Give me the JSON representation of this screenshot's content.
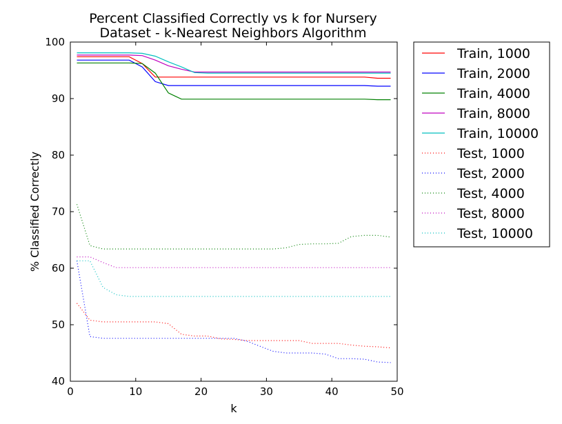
{
  "chart_data": {
    "type": "line",
    "title": "Percent Classified Correctly vs k for Nursery\nDataset - k-Nearest Neighbors Algorithm",
    "xlabel": "k",
    "ylabel": "% Classified Correctly",
    "xlim": [
      0,
      50
    ],
    "ylim": [
      40,
      100
    ],
    "xticks": [
      0,
      10,
      20,
      30,
      40,
      50
    ],
    "yticks": [
      40,
      50,
      60,
      70,
      80,
      90,
      100
    ],
    "grid": false,
    "legend_position": "outside-right",
    "x": [
      1,
      3,
      5,
      7,
      9,
      11,
      13,
      15,
      17,
      19,
      21,
      23,
      25,
      27,
      29,
      31,
      33,
      35,
      37,
      39,
      41,
      43,
      45,
      47,
      49
    ],
    "series": [
      {
        "name": "Train, 1000",
        "color": "#ff0000",
        "style": "solid",
        "values": [
          97.4,
          97.4,
          97.4,
          97.4,
          97.4,
          96.2,
          93.8,
          93.8,
          93.8,
          93.8,
          93.8,
          93.8,
          93.8,
          93.8,
          93.8,
          93.8,
          93.8,
          93.8,
          93.8,
          93.8,
          93.8,
          93.8,
          93.8,
          93.6,
          93.6
        ]
      },
      {
        "name": "Train, 2000",
        "color": "#0000ff",
        "style": "solid",
        "values": [
          96.8,
          96.8,
          96.8,
          96.8,
          96.8,
          95.6,
          93.0,
          92.3,
          92.3,
          92.3,
          92.3,
          92.3,
          92.3,
          92.3,
          92.3,
          92.3,
          92.3,
          92.3,
          92.3,
          92.3,
          92.3,
          92.3,
          92.3,
          92.2,
          92.2
        ]
      },
      {
        "name": "Train, 4000",
        "color": "#008000",
        "style": "solid",
        "values": [
          96.3,
          96.3,
          96.3,
          96.3,
          96.3,
          96.2,
          94.5,
          91.0,
          89.9,
          89.9,
          89.9,
          89.9,
          89.9,
          89.9,
          89.9,
          89.9,
          89.9,
          89.9,
          89.9,
          89.9,
          89.9,
          89.9,
          89.9,
          89.8,
          89.8
        ]
      },
      {
        "name": "Train, 8000",
        "color": "#bf00bf",
        "style": "solid",
        "values": [
          97.7,
          97.7,
          97.7,
          97.7,
          97.7,
          97.6,
          96.8,
          95.8,
          95.2,
          94.7,
          94.7,
          94.7,
          94.7,
          94.7,
          94.7,
          94.7,
          94.7,
          94.7,
          94.7,
          94.7,
          94.7,
          94.7,
          94.7,
          94.7,
          94.7
        ]
      },
      {
        "name": "Train, 10000",
        "color": "#00bfbf",
        "style": "solid",
        "values": [
          98.1,
          98.1,
          98.1,
          98.1,
          98.1,
          98.0,
          97.5,
          96.5,
          95.6,
          94.6,
          94.5,
          94.5,
          94.5,
          94.5,
          94.5,
          94.5,
          94.5,
          94.5,
          94.5,
          94.5,
          94.5,
          94.5,
          94.5,
          94.5,
          94.5
        ]
      },
      {
        "name": "Test, 1000",
        "color": "#ff0000",
        "style": "dotted",
        "values": [
          53.8,
          50.8,
          50.5,
          50.5,
          50.5,
          50.5,
          50.5,
          50.2,
          48.3,
          48.0,
          48.0,
          47.5,
          47.4,
          47.2,
          47.2,
          47.2,
          47.2,
          47.2,
          46.7,
          46.7,
          46.7,
          46.4,
          46.2,
          46.1,
          45.9
        ]
      },
      {
        "name": "Test, 2000",
        "color": "#0000ff",
        "style": "dotted",
        "values": [
          61.3,
          47.9,
          47.6,
          47.6,
          47.6,
          47.6,
          47.6,
          47.6,
          47.6,
          47.6,
          47.6,
          47.6,
          47.6,
          47.1,
          46.2,
          45.3,
          45.0,
          45.0,
          45.0,
          44.8,
          44.0,
          44.0,
          43.9,
          43.4,
          43.3
        ]
      },
      {
        "name": "Test, 4000",
        "color": "#008000",
        "style": "dotted",
        "values": [
          71.3,
          64.0,
          63.4,
          63.4,
          63.4,
          63.4,
          63.4,
          63.4,
          63.4,
          63.4,
          63.4,
          63.4,
          63.4,
          63.4,
          63.4,
          63.4,
          63.6,
          64.2,
          64.3,
          64.3,
          64.4,
          65.6,
          65.8,
          65.8,
          65.5
        ]
      },
      {
        "name": "Test, 8000",
        "color": "#bf00bf",
        "style": "dotted",
        "values": [
          62.0,
          62.0,
          61.0,
          60.1,
          60.1,
          60.1,
          60.1,
          60.1,
          60.1,
          60.1,
          60.1,
          60.1,
          60.1,
          60.1,
          60.1,
          60.1,
          60.1,
          60.1,
          60.1,
          60.1,
          60.1,
          60.1,
          60.1,
          60.1,
          60.1
        ]
      },
      {
        "name": "Test, 10000",
        "color": "#00bfbf",
        "style": "dotted",
        "values": [
          61.3,
          61.3,
          56.6,
          55.3,
          55.0,
          55.0,
          55.0,
          55.0,
          55.0,
          55.0,
          55.0,
          55.0,
          55.0,
          55.0,
          55.0,
          55.0,
          55.0,
          55.0,
          55.0,
          55.0,
          55.0,
          55.0,
          55.0,
          55.0,
          55.0
        ]
      }
    ]
  }
}
